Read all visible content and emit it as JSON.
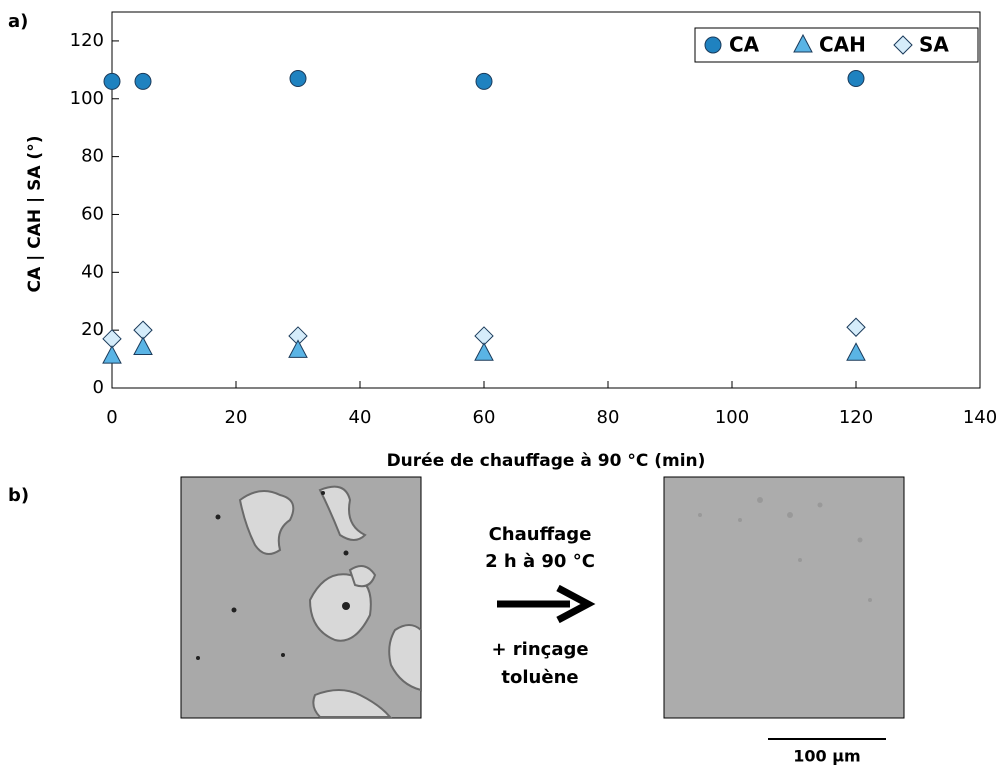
{
  "chart_data": {
    "type": "scatter",
    "x_label": "Durée de chauffage à 90 °C (min)",
    "y_label": "CA | CAH | SA (°)",
    "x": [
      0,
      5,
      30,
      60,
      120
    ],
    "series": [
      {
        "name": "CA",
        "color": "#1f82c0",
        "marker": "circle",
        "values": [
          106,
          106,
          107,
          106,
          107
        ]
      },
      {
        "name": "CAH",
        "color": "#5ab4e5",
        "marker": "triangle",
        "values": [
          11,
          14,
          13,
          12,
          12
        ]
      },
      {
        "name": "SA",
        "color": "#d5ecfa",
        "marker": "diamond",
        "values": [
          17,
          20,
          18,
          18,
          21
        ]
      }
    ],
    "xlim": [
      0,
      140
    ],
    "xticks": [
      0,
      20,
      40,
      60,
      80,
      100,
      120,
      140
    ],
    "ylim": [
      0,
      130
    ],
    "yticks": [
      0,
      20,
      40,
      60,
      80,
      100,
      120
    ],
    "legend": "upper right"
  },
  "panel_labels": [
    "a)",
    "b)"
  ],
  "treatment": {
    "heating": [
      "Chauffage",
      "2 h à 90 °C"
    ],
    "rinse": [
      "+ rinçage",
      "toluène"
    ]
  },
  "scale_bar": "100 µm"
}
